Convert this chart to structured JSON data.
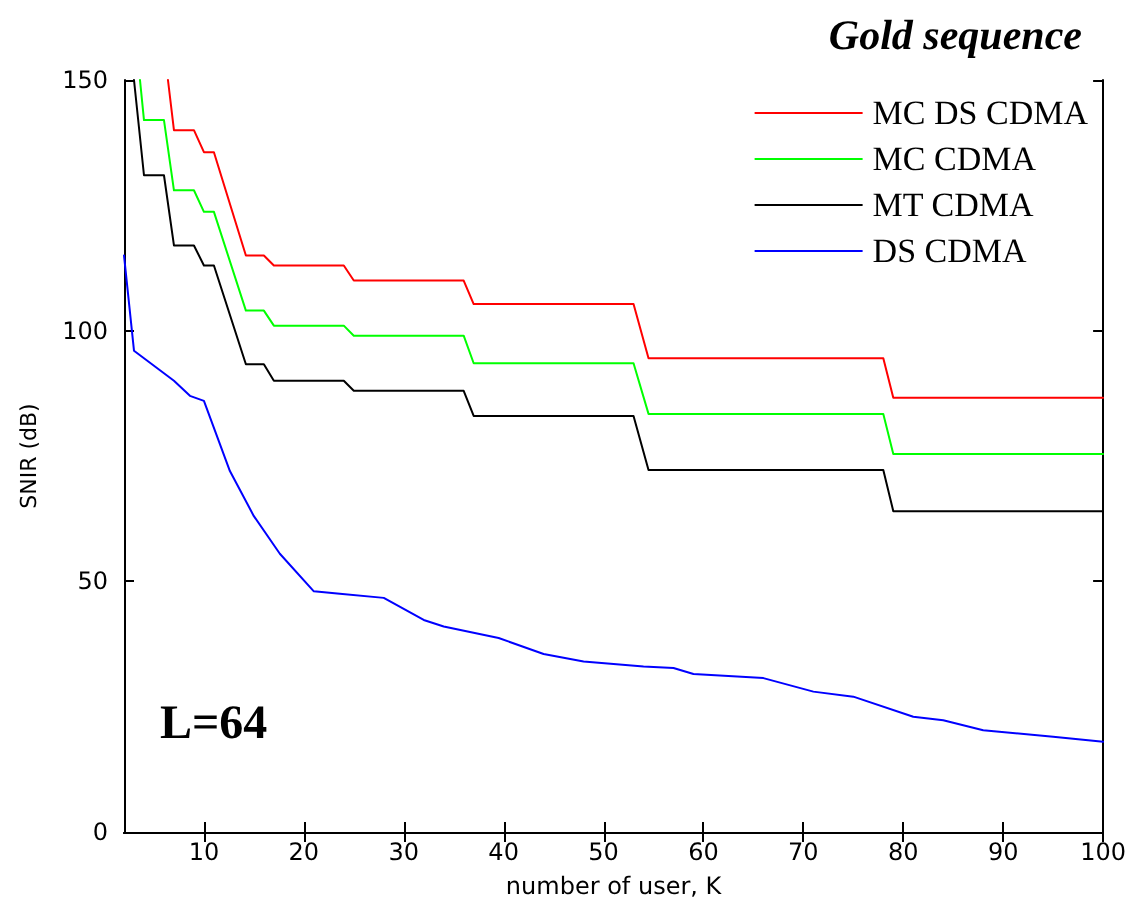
{
  "chart_data": {
    "type": "line",
    "title": "Gold sequence",
    "xlabel": "number of user, K",
    "ylabel": "SNIR (dB)",
    "annotations": [
      "L=64"
    ],
    "xlim": [
      2,
      100
    ],
    "xticks": [
      10,
      20,
      30,
      40,
      50,
      60,
      70,
      80,
      90,
      100
    ],
    "ylim": [
      0,
      150
    ],
    "yticks": [
      0,
      50,
      100,
      150
    ],
    "grid": false,
    "legend": "top right",
    "marker": "none",
    "line_style": "solid",
    "series": [
      {
        "name": "MC DS CDMA",
        "color": "#ff0000",
        "x": [
          6.4,
          7,
          9,
          10,
          11,
          14.2,
          16,
          17,
          24,
          25,
          36,
          37,
          53,
          54.5,
          78,
          79,
          100
        ],
        "values": [
          150,
          140,
          140,
          135.6,
          135.6,
          115,
          115,
          113,
          113,
          110,
          110,
          105.3,
          105.3,
          94.5,
          94.5,
          86.6,
          86.6
        ]
      },
      {
        "name": "MC CDMA",
        "color": "#00ff00",
        "x": [
          3.6,
          4,
          6,
          7,
          9,
          10,
          11,
          14.2,
          16,
          17,
          24,
          25,
          36,
          37,
          53,
          54.5,
          78,
          79,
          100
        ],
        "values": [
          150,
          142,
          142,
          128,
          128,
          123.7,
          123.7,
          104,
          104,
          101,
          101,
          99,
          99,
          93.5,
          93.5,
          83.4,
          83.4,
          75.4,
          75.4
        ]
      },
      {
        "name": "MT CDMA",
        "color": "#000000",
        "x": [
          3,
          4,
          6,
          7,
          9,
          10,
          11,
          14.2,
          16,
          17,
          24,
          25,
          36,
          37,
          53,
          54.5,
          78,
          79,
          100
        ],
        "values": [
          150,
          131,
          131,
          117,
          117,
          113,
          113,
          93.3,
          93.3,
          90,
          90,
          88,
          88,
          83,
          83,
          72.2,
          72.2,
          64,
          64
        ]
      },
      {
        "name": "DS CDMA",
        "color": "#0000ff",
        "x": [
          2,
          3,
          7,
          8.6,
          10,
          12.6,
          15,
          17.6,
          21,
          23.6,
          28,
          32,
          34,
          39.5,
          44,
          48,
          54,
          57,
          59,
          66,
          71,
          75,
          81,
          84,
          88,
          95,
          100
        ],
        "values": [
          115,
          96,
          90,
          87,
          86,
          72,
          63,
          55.5,
          48,
          47.5,
          46.7,
          42.3,
          41,
          38.7,
          35.5,
          34,
          33,
          32.7,
          31.5,
          30.7,
          28,
          27,
          23,
          22.3,
          20.3,
          19,
          18
        ]
      }
    ]
  }
}
